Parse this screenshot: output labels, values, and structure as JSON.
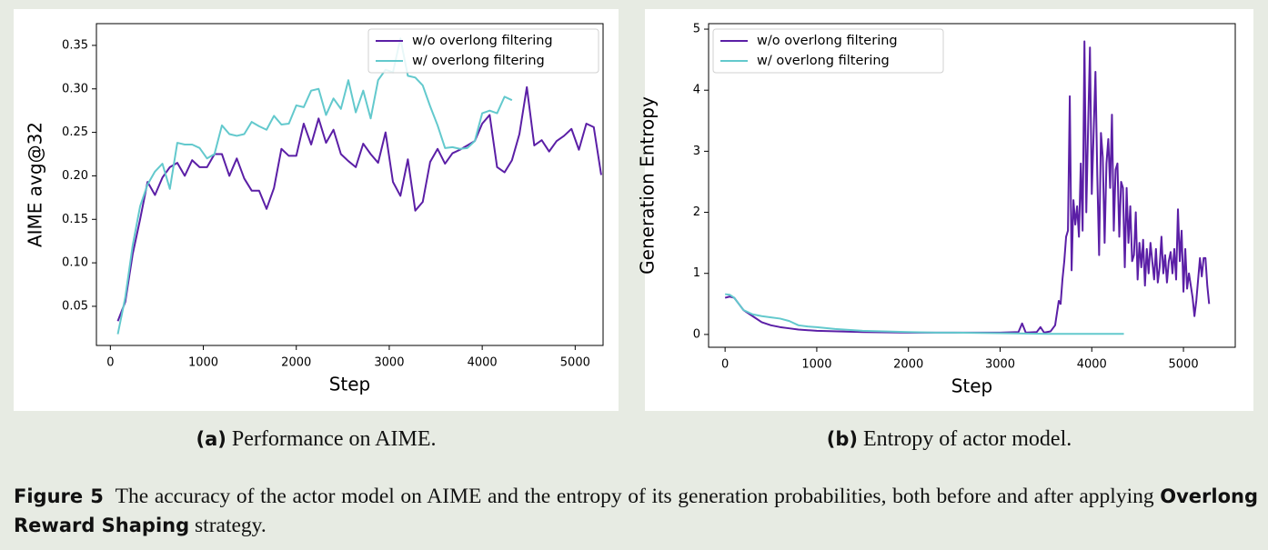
{
  "chart_data": [
    {
      "type": "line",
      "caption_label": "(a)",
      "caption": "Performance on AIME.",
      "x_label": "Step",
      "y_label": "AIME avg@32",
      "legend": "upper right",
      "xlim": [
        -150,
        5300
      ],
      "xticks": [
        0,
        1000,
        2000,
        3000,
        4000,
        5000
      ],
      "ylim": [
        0.005,
        0.375
      ],
      "yticks": [
        0.05,
        {
          "value": 0.1,
          "label": "0.10"
        },
        0.15,
        {
          "value": 0.2,
          "label": "0.20"
        },
        0.25,
        {
          "value": 0.3,
          "label": "0.30"
        },
        0.35
      ],
      "series": [
        {
          "name": "w/o overlong filtering",
          "color": "#5b1fa6",
          "x": [
            80,
            160,
            240,
            320,
            400,
            480,
            560,
            640,
            720,
            800,
            880,
            960,
            1040,
            1120,
            1200,
            1280,
            1360,
            1440,
            1520,
            1600,
            1680,
            1760,
            1840,
            1920,
            2000,
            2080,
            2160,
            2240,
            2320,
            2400,
            2480,
            2560,
            2640,
            2720,
            2800,
            2880,
            2960,
            3040,
            3120,
            3200,
            3280,
            3360,
            3440,
            3520,
            3600,
            3680,
            3760,
            3840,
            3920,
            4000,
            4080,
            4160,
            4240,
            4320,
            4400,
            4480,
            4560,
            4640,
            4720,
            4800,
            4880,
            4960,
            5040,
            5120,
            5200,
            5280
          ],
          "values": [
            0.033,
            0.055,
            0.11,
            0.15,
            0.193,
            0.178,
            0.198,
            0.21,
            0.215,
            0.2,
            0.218,
            0.21,
            0.21,
            0.225,
            0.225,
            0.2,
            0.22,
            0.197,
            0.183,
            0.183,
            0.162,
            0.186,
            0.231,
            0.223,
            0.223,
            0.26,
            0.236,
            0.266,
            0.238,
            0.253,
            0.225,
            0.217,
            0.21,
            0.237,
            0.225,
            0.215,
            0.25,
            0.193,
            0.177,
            0.219,
            0.16,
            0.17,
            0.216,
            0.231,
            0.214,
            0.226,
            0.23,
            0.235,
            0.24,
            0.26,
            0.27,
            0.21,
            0.204,
            0.218,
            0.248,
            0.302,
            0.235,
            0.241,
            0.228,
            0.24,
            0.246,
            0.254,
            0.23,
            0.26,
            0.256,
            0.201
          ]
        },
        {
          "name": "w/ overlong filtering",
          "color": "#63c9cd",
          "x": [
            80,
            160,
            240,
            320,
            400,
            480,
            560,
            640,
            720,
            800,
            880,
            960,
            1040,
            1120,
            1200,
            1280,
            1360,
            1440,
            1520,
            1600,
            1680,
            1760,
            1840,
            1920,
            2000,
            2080,
            2160,
            2240,
            2320,
            2400,
            2480,
            2560,
            2640,
            2720,
            2800,
            2880,
            2960,
            3040,
            3120,
            3200,
            3280,
            3360,
            3440,
            3520,
            3600,
            3680,
            3760,
            3840,
            3920,
            4000,
            4080,
            4160,
            4240,
            4320
          ],
          "values": [
            0.018,
            0.06,
            0.12,
            0.165,
            0.19,
            0.205,
            0.214,
            0.185,
            0.238,
            0.236,
            0.236,
            0.232,
            0.22,
            0.225,
            0.258,
            0.248,
            0.246,
            0.248,
            0.262,
            0.257,
            0.253,
            0.269,
            0.259,
            0.26,
            0.281,
            0.279,
            0.298,
            0.3,
            0.27,
            0.289,
            0.277,
            0.31,
            0.273,
            0.298,
            0.266,
            0.31,
            0.322,
            0.319,
            0.358,
            0.315,
            0.313,
            0.304,
            0.28,
            0.258,
            0.232,
            0.233,
            0.231,
            0.232,
            0.24,
            0.272,
            0.275,
            0.272,
            0.291,
            0.287
          ]
        }
      ]
    },
    {
      "type": "line",
      "caption_label": "(b)",
      "caption": "Entropy of actor model.",
      "x_label": "Step",
      "y_label": "Generation Entropy",
      "legend": "upper left",
      "xlim": [
        -180,
        5565
      ],
      "xticks": [
        0,
        1000,
        2000,
        3000,
        4000,
        5000
      ],
      "ylim": [
        -0.21,
        5.09
      ],
      "yticks": [
        0,
        1,
        2,
        3,
        4,
        5
      ],
      "series": [
        {
          "name": "w/o overlong filtering",
          "color": "#5b1fa6",
          "x": [
            0,
            50,
            100,
            150,
            200,
            300,
            400,
            500,
            600,
            700,
            800,
            1000,
            1500,
            2000,
            2500,
            3000,
            3200,
            3240,
            3280,
            3400,
            3440,
            3480,
            3550,
            3600,
            3640,
            3660,
            3680,
            3700,
            3720,
            3740,
            3760,
            3780,
            3800,
            3820,
            3840,
            3860,
            3880,
            3900,
            3920,
            3940,
            3960,
            3980,
            4000,
            4020,
            4040,
            4060,
            4080,
            4100,
            4120,
            4140,
            4160,
            4180,
            4200,
            4220,
            4240,
            4260,
            4280,
            4300,
            4320,
            4340,
            4360,
            4380,
            4400,
            4420,
            4440,
            4460,
            4480,
            4500,
            4520,
            4540,
            4560,
            4580,
            4600,
            4620,
            4640,
            4660,
            4680,
            4700,
            4720,
            4740,
            4760,
            4780,
            4800,
            4820,
            4840,
            4860,
            4880,
            4900,
            4920,
            4940,
            4960,
            4980,
            5000,
            5020,
            5040,
            5060,
            5080,
            5100,
            5120,
            5140,
            5160,
            5180,
            5200,
            5220,
            5240,
            5260,
            5280
          ],
          "values": [
            0.6,
            0.62,
            0.6,
            0.5,
            0.4,
            0.3,
            0.2,
            0.15,
            0.12,
            0.1,
            0.08,
            0.06,
            0.04,
            0.03,
            0.03,
            0.03,
            0.04,
            0.18,
            0.03,
            0.04,
            0.12,
            0.03,
            0.05,
            0.15,
            0.55,
            0.5,
            0.9,
            1.2,
            1.6,
            1.7,
            3.9,
            1.05,
            2.2,
            1.8,
            2.1,
            1.6,
            2.8,
            1.7,
            4.8,
            2.0,
            3.4,
            4.7,
            2.3,
            3.3,
            4.3,
            2.6,
            1.3,
            3.3,
            2.9,
            1.5,
            2.8,
            3.2,
            2.4,
            3.6,
            1.7,
            2.7,
            2.8,
            1.6,
            2.5,
            2.4,
            1.1,
            2.4,
            1.5,
            2.1,
            1.2,
            1.3,
            2.0,
            0.9,
            1.5,
            1.1,
            1.55,
            0.8,
            1.4,
            1.0,
            1.5,
            1.2,
            0.9,
            1.4,
            0.85,
            1.1,
            1.6,
            1.0,
            1.3,
            0.85,
            1.2,
            1.35,
            1.0,
            1.4,
            0.9,
            2.05,
            1.2,
            1.7,
            0.7,
            1.4,
            0.75,
            1.0,
            0.8,
            0.6,
            0.3,
            0.55,
            0.9,
            1.25,
            0.95,
            1.25,
            1.25,
            0.8,
            0.5
          ]
        },
        {
          "name": "w/ overlong filtering",
          "color": "#63c9cd",
          "x": [
            0,
            50,
            100,
            150,
            200,
            300,
            400,
            500,
            600,
            700,
            800,
            900,
            1000,
            1200,
            1500,
            2000,
            2300,
            2500,
            3000,
            3500,
            4000,
            4350
          ],
          "values": [
            0.66,
            0.65,
            0.6,
            0.5,
            0.4,
            0.33,
            0.3,
            0.28,
            0.26,
            0.22,
            0.15,
            0.13,
            0.12,
            0.09,
            0.06,
            0.04,
            0.03,
            0.03,
            0.02,
            0.01,
            0.01,
            0.01
          ]
        }
      ]
    }
  ],
  "figure": {
    "label": "Figure 5",
    "text": "The accuracy of the actor model on AIME and the entropy of its generation probabilities, both before and after applying",
    "emphasis": "Overlong Reward Shaping",
    "text_end": "strategy."
  }
}
